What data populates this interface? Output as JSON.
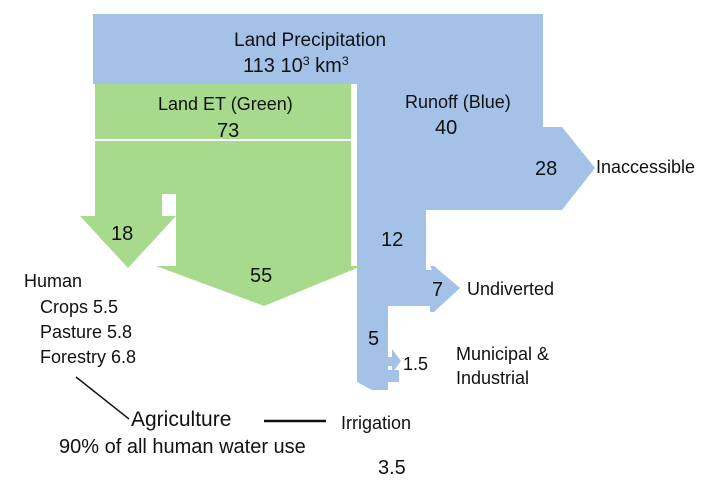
{
  "colors": {
    "blue": "#a4c2e8",
    "green": "#a8da8d",
    "text": "#111111",
    "background": "#ffffff"
  },
  "precip": {
    "label": "Land Precipitation",
    "value": "113",
    "unit_base": "10",
    "unit_base_exp": "3",
    "unit": "km",
    "unit_exp": "3"
  },
  "et": {
    "label": "Land ET (Green)",
    "value": "73"
  },
  "runoff": {
    "label": "Runoff (Blue)",
    "value": "40"
  },
  "inaccessible": {
    "value": "28",
    "label": "Inaccessible"
  },
  "human_et": {
    "value": "18"
  },
  "other_et": {
    "value": "55"
  },
  "accessible": {
    "value": "12"
  },
  "undiverted": {
    "value": "7",
    "label": "Undiverted"
  },
  "diverted": {
    "value": "5"
  },
  "municipal": {
    "value": "1.5",
    "label_line1": "Municipal &",
    "label_line2": "Industrial"
  },
  "human": {
    "label": "Human",
    "items": [
      "Crops 5.5",
      "Pasture 5.8",
      "Forestry 6.8"
    ]
  },
  "agriculture": {
    "label": "Agriculture",
    "subtitle": "90% of all human water use"
  },
  "irrigation": {
    "label": "Irrigation",
    "value": "3.5"
  }
}
